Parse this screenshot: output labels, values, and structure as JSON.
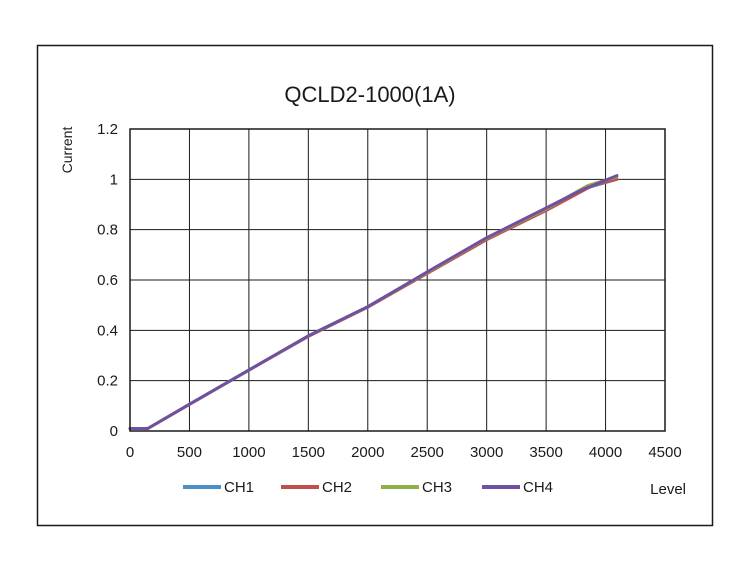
{
  "chart_data": {
    "type": "line",
    "title": "QCLD2-1000(1A)",
    "xlabel": "Level",
    "ylabel": "Current",
    "xlim": [
      0,
      4500
    ],
    "ylim": [
      0,
      1.2
    ],
    "x_ticks": [
      "0",
      "500",
      "1000",
      "1500",
      "2000",
      "2500",
      "3000",
      "3500",
      "4000",
      "4500"
    ],
    "y_ticks": [
      "0",
      "0.2",
      "0.4",
      "0.6",
      "0.8",
      "1",
      "1.2"
    ],
    "grid": true,
    "legend_position": "bottom",
    "series": [
      {
        "name": "CH1",
        "color": "#4a90c8",
        "points": [
          [
            0,
            0.01
          ],
          [
            150,
            0.01
          ],
          [
            500,
            0.106
          ],
          [
            1000,
            0.242
          ],
          [
            1500,
            0.378
          ],
          [
            2000,
            0.494
          ],
          [
            2500,
            0.63
          ],
          [
            3000,
            0.766
          ],
          [
            3500,
            0.882
          ],
          [
            3800,
            0.96
          ],
          [
            4095,
            1.0
          ]
        ]
      },
      {
        "name": "CH2",
        "color": "#c0504d",
        "points": [
          [
            0,
            0.01
          ],
          [
            150,
            0.01
          ],
          [
            500,
            0.106
          ],
          [
            1000,
            0.242
          ],
          [
            1500,
            0.376
          ],
          [
            2000,
            0.492
          ],
          [
            2500,
            0.626
          ],
          [
            3000,
            0.76
          ],
          [
            3500,
            0.876
          ],
          [
            3900,
            0.978
          ],
          [
            4095,
            1.0
          ]
        ]
      },
      {
        "name": "CH3",
        "color": "#8db14a",
        "points": [
          [
            0,
            0.01
          ],
          [
            150,
            0.01
          ],
          [
            500,
            0.106
          ],
          [
            1000,
            0.242
          ],
          [
            1500,
            0.378
          ],
          [
            2000,
            0.494
          ],
          [
            2500,
            0.63
          ],
          [
            3000,
            0.766
          ],
          [
            3500,
            0.882
          ],
          [
            3850,
            0.975
          ],
          [
            4095,
            1.01
          ]
        ]
      },
      {
        "name": "CH4",
        "color": "#7050a0",
        "points": [
          [
            0,
            0.01
          ],
          [
            150,
            0.01
          ],
          [
            500,
            0.106
          ],
          [
            1000,
            0.242
          ],
          [
            1500,
            0.378
          ],
          [
            2000,
            0.494
          ],
          [
            2500,
            0.632
          ],
          [
            3000,
            0.768
          ],
          [
            3500,
            0.886
          ],
          [
            3800,
            0.958
          ],
          [
            4095,
            1.015
          ]
        ]
      }
    ]
  }
}
